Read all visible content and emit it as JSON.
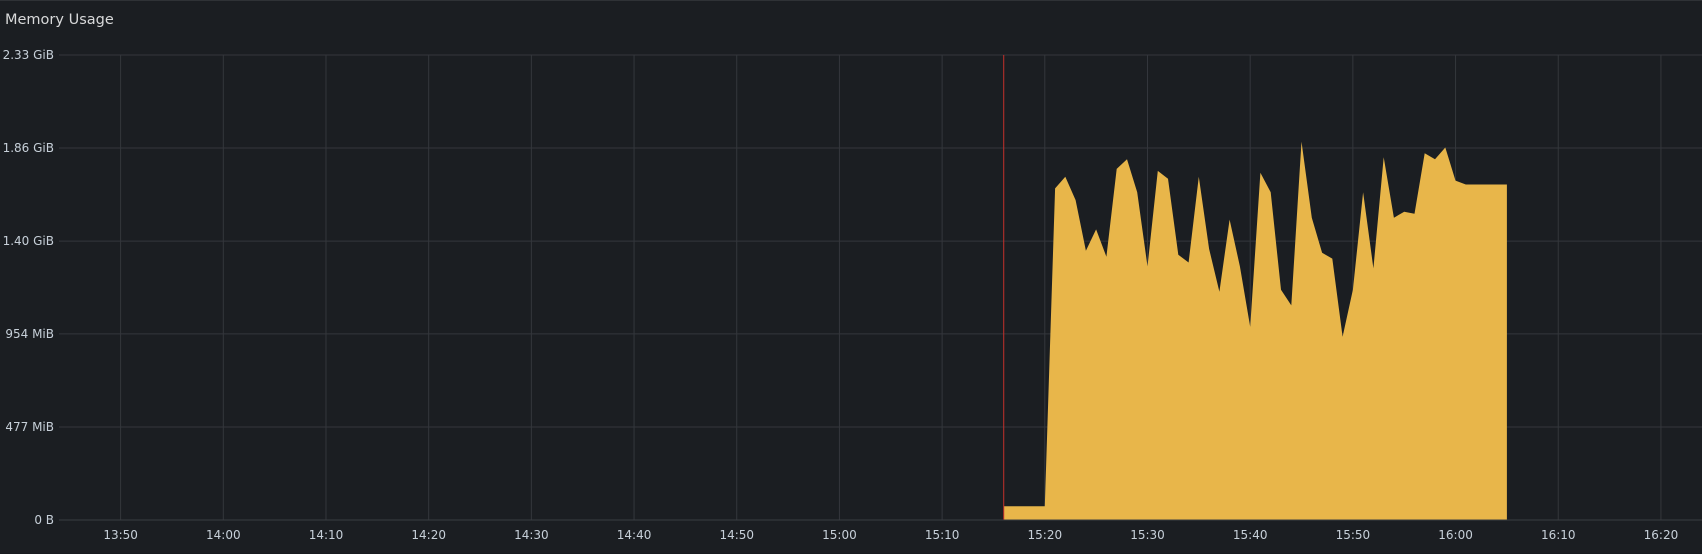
{
  "panel": {
    "title": "Memory Usage"
  },
  "chart_data": {
    "type": "area",
    "title": "Memory Usage",
    "xlabel": "",
    "ylabel": "",
    "y_unit": "bytes",
    "y_ticks": [
      {
        "label": "0 B",
        "value": 0
      },
      {
        "label": "477 MiB",
        "value": 477
      },
      {
        "label": "954 MiB",
        "value": 954
      },
      {
        "label": "1.40 GiB",
        "value": 1430
      },
      {
        "label": "1.86 GiB",
        "value": 1907
      },
      {
        "label": "2.33 GiB",
        "value": 2384
      }
    ],
    "ylim": [
      0,
      2384
    ],
    "x_ticks": [
      "13:50",
      "14:00",
      "14:10",
      "14:20",
      "14:30",
      "14:40",
      "14:50",
      "15:00",
      "15:10",
      "15:20",
      "15:30",
      "15:40",
      "15:50",
      "16:00",
      "16:10",
      "16:20"
    ],
    "x_range": [
      "13:44",
      "16:24"
    ],
    "grid": true,
    "annotation_time": "15:16",
    "colors": {
      "fill": "#e8b64a",
      "grid": "#34373c",
      "annotation": "#c4302b",
      "text": "#c7d0d9"
    },
    "series": [
      {
        "x": [
          "15:16",
          "15:20",
          "15:21",
          "15:22",
          "15:23",
          "15:24",
          "15:25",
          "15:26",
          "15:27",
          "15:28",
          "15:29",
          "15:30",
          "15:31",
          "15:32",
          "15:33",
          "15:34",
          "15:35",
          "15:36",
          "15:37",
          "15:38",
          "15:39",
          "15:40",
          "15:41",
          "15:42",
          "15:43",
          "15:44",
          "15:45",
          "15:46",
          "15:47",
          "15:48",
          "15:49",
          "15:50",
          "15:51",
          "15:52",
          "15:53",
          "15:54",
          "15:55",
          "15:56",
          "15:57",
          "15:58",
          "15:59",
          "16:00",
          "16:01",
          "16:02",
          "16:03",
          "16:04",
          "16:05"
        ],
        "values": [
          70,
          70,
          1700,
          1760,
          1640,
          1380,
          1490,
          1350,
          1800,
          1850,
          1680,
          1300,
          1790,
          1750,
          1360,
          1320,
          1760,
          1390,
          1170,
          1540,
          1300,
          990,
          1780,
          1680,
          1180,
          1100,
          1940,
          1550,
          1370,
          1340,
          940,
          1180,
          1680,
          1290,
          1860,
          1550,
          1580,
          1570,
          1880,
          1850,
          1910,
          1740,
          1720,
          1720,
          1720,
          1720,
          1720
        ]
      }
    ]
  }
}
